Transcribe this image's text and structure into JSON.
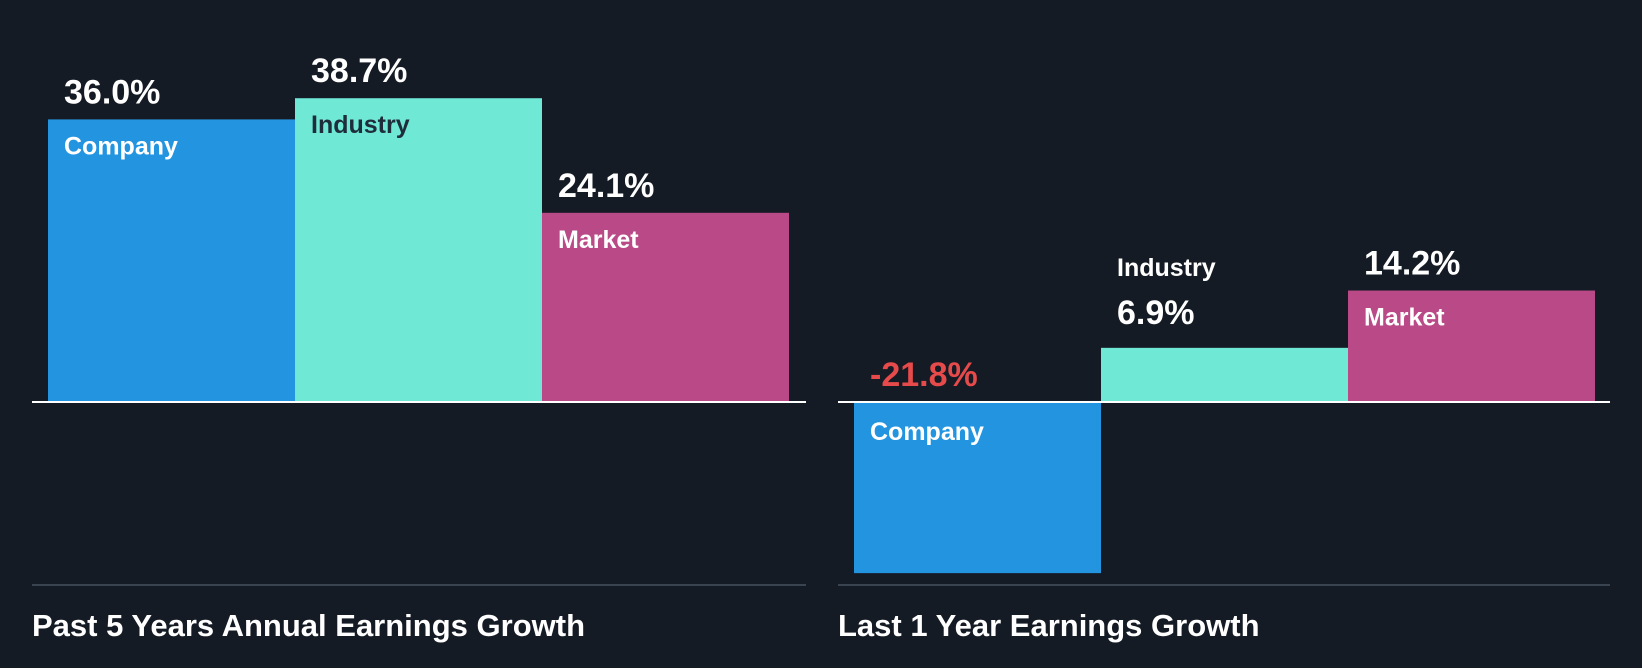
{
  "colors": {
    "background": "#151b24",
    "company": "#2394e0",
    "industry": "#6fe8d6",
    "market": "#b94a87",
    "negative_value": "#e64a4a",
    "value_text": "#ffffff",
    "dark_label": "#1f2d3a"
  },
  "chart_data": [
    {
      "type": "bar",
      "title": "Past 5 Years Annual Earnings Growth",
      "categories": [
        "Company",
        "Industry",
        "Market"
      ],
      "values": [
        36.0,
        38.7,
        24.1
      ],
      "value_labels": [
        "36.0%",
        "38.7%",
        "24.1%"
      ],
      "unit": "%",
      "ylim": [
        -22,
        40
      ],
      "grid": false,
      "legend": "none"
    },
    {
      "type": "bar",
      "title": "Last 1 Year Earnings Growth",
      "categories": [
        "Company",
        "Industry",
        "Market"
      ],
      "values": [
        -21.8,
        6.9,
        14.2
      ],
      "value_labels": [
        "-21.8%",
        "6.9%",
        "14.2%"
      ],
      "unit": "%",
      "ylim": [
        -22,
        40
      ],
      "grid": false,
      "legend": "none"
    }
  ]
}
